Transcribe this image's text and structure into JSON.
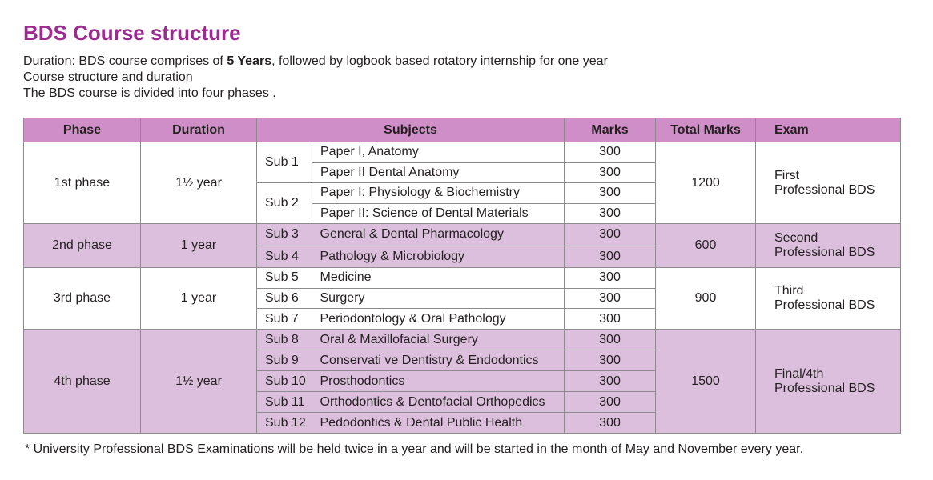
{
  "title": "BDS Course structure",
  "intro": {
    "line1": {
      "before": "Duration: BDS course comprises of ",
      "bold": "5 Years",
      "after": ", followed by logbook based rotatory internship for one year"
    },
    "line2": "Course structure and duration",
    "line3": "The BDS course is divided into four phases ."
  },
  "table": {
    "headers": [
      "Phase",
      "Duration",
      "Subjects",
      "Marks",
      "Total Marks",
      "Exam"
    ],
    "phases": [
      {
        "phase": "1st phase",
        "duration": "1½  year",
        "total_marks": 1200,
        "exam": [
          "First",
          "Professional BDS"
        ],
        "subjects": [
          {
            "sub": "Sub 1",
            "papers": [
              {
                "name": "Paper I, Anatomy",
                "marks": 300
              },
              {
                "name": "Paper II Dental Anatomy",
                "marks": 300
              }
            ]
          },
          {
            "sub": "Sub 2",
            "papers": [
              {
                "name": "Paper I: Physiology & Biochemistry",
                "marks": 300
              },
              {
                "name": "Paper II: Science of Dental Materials",
                "marks": 300
              }
            ]
          }
        ]
      },
      {
        "phase": "2nd phase",
        "duration": "1 year",
        "total_marks": 600,
        "exam": [
          "Second",
          "Professional BDS"
        ],
        "subjects": [
          {
            "sub": "Sub 3",
            "papers": [
              {
                "name": "General & Dental Pharmacology",
                "marks": 300
              }
            ]
          },
          {
            "sub": "Sub 4",
            "papers": [
              {
                "name": "Pathology & Microbiology",
                "marks": 300
              }
            ]
          }
        ]
      },
      {
        "phase": "3rd phase",
        "duration": "1 year",
        "total_marks": 900,
        "exam": [
          "Third",
          "Professional BDS"
        ],
        "subjects": [
          {
            "sub": "Sub 5",
            "papers": [
              {
                "name": "Medicine",
                "marks": 300
              }
            ]
          },
          {
            "sub": "Sub 6",
            "papers": [
              {
                "name": "Surgery",
                "marks": 300
              }
            ]
          },
          {
            "sub": "Sub 7",
            "papers": [
              {
                "name": "Periodontology & Oral Pathology",
                "marks": 300
              }
            ]
          }
        ]
      },
      {
        "phase": "4th phase",
        "duration": "1½  year",
        "total_marks": 1500,
        "exam": [
          "Final/4th",
          "Professional BDS"
        ],
        "subjects": [
          {
            "sub": "Sub 8",
            "papers": [
              {
                "name": "Oral & Maxillofacial Surgery",
                "marks": 300
              }
            ]
          },
          {
            "sub": "Sub 9",
            "papers": [
              {
                "name": "Conservati ve Dentistry & Endodontics",
                "marks": 300
              }
            ]
          },
          {
            "sub": "Sub 10",
            "papers": [
              {
                "name": "Prosthodontics",
                "marks": 300
              }
            ]
          },
          {
            "sub": "Sub 11",
            "papers": [
              {
                "name": "Orthodontics & Dentofacial Orthopedics",
                "marks": 300
              }
            ]
          },
          {
            "sub": "Sub 12",
            "papers": [
              {
                "name": "Pedodontics & Dental Public Health",
                "marks": 300
              }
            ]
          }
        ]
      }
    ]
  },
  "note": "* University Professional BDS Examinations will be held twice in a year and will be started in the month of May and November every year."
}
